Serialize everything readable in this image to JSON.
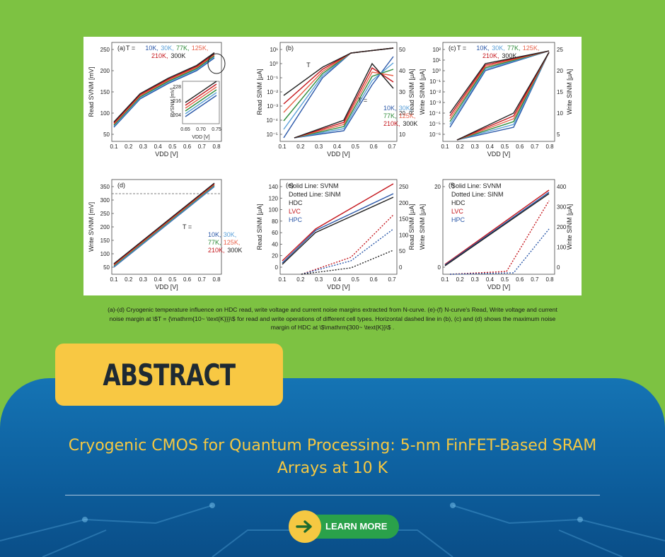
{
  "figure": {
    "panels": [
      {
        "id": "a",
        "tag": "(a)",
        "legend": "T = 10K, 30K, 77K, 125K, 210K, 300K",
        "ylabel": "Read SVNM [mV]",
        "xlabel": "VDD [V]",
        "yticks": [
          "50",
          "100",
          "150",
          "200",
          "250"
        ],
        "xticks": [
          "0.1",
          "0.2",
          "0.3",
          "0.4",
          "0.5",
          "0.6",
          "0.7",
          "0.8"
        ],
        "inset": {
          "ylabel": "RVSNM [mV]",
          "xlabel": "VDD [V]",
          "yticks": [
            "228",
            "216",
            "204"
          ],
          "xticks": [
            "0.65",
            "0.70",
            "0.75"
          ]
        }
      },
      {
        "id": "b",
        "tag": "(b)",
        "ylabel": "Read SINM [μA]",
        "y2label": "Read SINM [μA]",
        "xlabel": "VDD [V]",
        "yticks": [
          "10¹",
          "10⁰",
          "10⁻¹",
          "10⁻²",
          "10⁻³",
          "10⁻⁴",
          "10⁻⁵"
        ],
        "y2ticks": [
          "50",
          "40",
          "30",
          "20",
          "10"
        ],
        "xticks": [
          "0.1",
          "0.2",
          "0.3",
          "0.4",
          "0.5",
          "0.6",
          "0.7"
        ],
        "annot": "T",
        "legend": "T = 10K, 30K, 77K, 125K, 210K, 300K"
      },
      {
        "id": "c",
        "tag": "(c)",
        "legend": "T = 10K, 30K, 77K, 125K, 210K, 300K",
        "ylabel": "Write SINM [μA]",
        "y2label": "Write SINM [μA]",
        "xlabel": "VDD [V]",
        "yticks": [
          "10²",
          "10¹",
          "10⁰",
          "10⁻¹",
          "10⁻²",
          "10⁻³",
          "10⁻⁴",
          "10⁻⁵",
          "10⁻⁶"
        ],
        "y2ticks": [
          "25",
          "20",
          "15",
          "10",
          "5"
        ],
        "xticks": [
          "0.1",
          "0.2",
          "0.3",
          "0.4",
          "0.5",
          "0.6",
          "0.7",
          "0.8"
        ]
      },
      {
        "id": "d",
        "tag": "(d)",
        "legend": "T = 10K, 30K, 77K , 125K, 210K, 300K",
        "ylabel": "Write SVNM [mV]",
        "xlabel": "VDD [V]",
        "yticks": [
          "350",
          "300",
          "250",
          "200",
          "150",
          "100",
          "50"
        ],
        "xticks": [
          "0.1",
          "0.2",
          "0.3",
          "0.4",
          "0.5",
          "0.6",
          "0.7",
          "0.8"
        ]
      },
      {
        "id": "e",
        "tag": "(e)",
        "legend_lines": [
          "Solid Line: SVNM",
          "Dotted Line: SINM",
          "HDC",
          "LVC",
          "HPC"
        ],
        "ylabel": "Read SINM [μA]",
        "y2label": "Read SINM [μA]",
        "xlabel": "VDD [V]",
        "yticks": [
          "140",
          "120",
          "100",
          "80",
          "60",
          "40",
          "20",
          "0"
        ],
        "y2ticks": [
          "250",
          "200",
          "150",
          "100",
          "50",
          "0"
        ],
        "xticks": [
          "0.1",
          "0.2",
          "0.3",
          "0.4",
          "0.5",
          "0.6",
          "0.7"
        ]
      },
      {
        "id": "f",
        "tag": "(f)",
        "legend_lines": [
          "Solid Line: SVNM",
          "Dotted Line: SINM",
          "HDC",
          "LVC",
          "HPC"
        ],
        "ylabel": "Write SINM [μA]",
        "y2label": "Write SINM [μA]",
        "xlabel": "VDD [V]",
        "yticks": [
          "20",
          "0"
        ],
        "y2ticks": [
          "400",
          "300",
          "200",
          "100",
          "0"
        ],
        "xticks": [
          "0.1",
          "0.2",
          "0.3",
          "0.4",
          "0.5",
          "0.6",
          "0.7",
          "0.8"
        ]
      }
    ]
  },
  "caption": "(a)-(d) Cryogenic temperature influence on HDC read, write voltage and current noise margins extracted from N-curve. (e)-(f) N-curve's Read, Write voltage and current noise margin at \\$T = {\\mathrm{10~ \\text{K}}}\\$ for read and write operations of different cell types. Horizontal dashed line in (b), (c) and (d) shows the maximum noise margin of HDC at \\$\\mathrm{300~ \\text{K}}\\$ .",
  "abstract_label": "ABSTRACT",
  "title": "Cryogenic CMOS for Quantum Processing: 5-nm FinFET-Based SRAM Arrays at 10 K",
  "cta": {
    "label": "LEARN MORE",
    "icon": "arrow-right-icon"
  },
  "colors": {
    "background": "#7dc242",
    "accent": "#f5c842",
    "panel": "#1574b4",
    "button": "#2aa14a"
  },
  "temperature_labels": [
    "10K",
    "30K",
    "77K",
    "125K",
    "210K",
    "300K"
  ],
  "temperature_colors": [
    "#2a57a8",
    "#5aa0d8",
    "#2e8b3a",
    "#e8624a",
    "#c4161c",
    "#222222"
  ]
}
